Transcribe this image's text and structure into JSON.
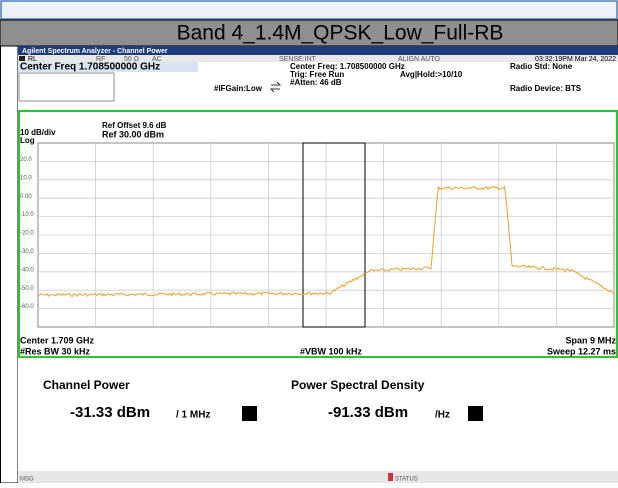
{
  "header": {
    "title": "Band 4_1.4M_QPSK_Low_Full-RB"
  },
  "analyzer": {
    "window_title": "Agilent Spectrum Analyzer - Channel Power",
    "status_bar": {
      "rl": "RL",
      "rf": "RF",
      "impedance": "50 Ω",
      "coupling": "AC",
      "sense": "SENSE:INT",
      "align": "ALIGN AUTO",
      "timestamp": "03:32:19PM Mar 24, 2022"
    },
    "settings": {
      "center_freq": "Center Freq 1.708500000 GHz",
      "center_freq_info": "Center Freq: 1.708500000 GHz",
      "trig": "Trig: Free Run",
      "avg_hold": "Avg|Hold:>10/10",
      "atten": "#Atten: 46 dB",
      "if_gain": "#IFGain:Low",
      "radio_std": "Radio Std: None",
      "radio_device": "Radio Device: BTS"
    },
    "plot": {
      "ref_offset": "Ref Offset 9.6 dB",
      "ref_level": "Ref 30.00 dBm",
      "scale": "10 dB/div",
      "scale_type": "Log",
      "y_labels": [
        "20.0",
        "10.0",
        "0.00",
        "-10.0",
        "-20.0",
        "-30.0",
        "-40.0",
        "-50.0",
        "-60.0"
      ]
    },
    "footer": {
      "center": "Center  1.709 GHz",
      "span": "Span 9 MHz",
      "res_bw": "#Res BW  30 kHz",
      "vbw": "#VBW  100 kHz",
      "sweep": "Sweep  12.27 ms"
    },
    "results": {
      "channel_power_label": "Channel Power",
      "channel_power_value": "-31.33 dBm",
      "channel_power_unit": "/ 1 MHz",
      "psd_label": "Power Spectral Density",
      "psd_value": "-91.33 dBm",
      "psd_unit": "/Hz"
    },
    "bottom_bar": {
      "msg": "MSG",
      "status": "STATUS"
    }
  }
}
